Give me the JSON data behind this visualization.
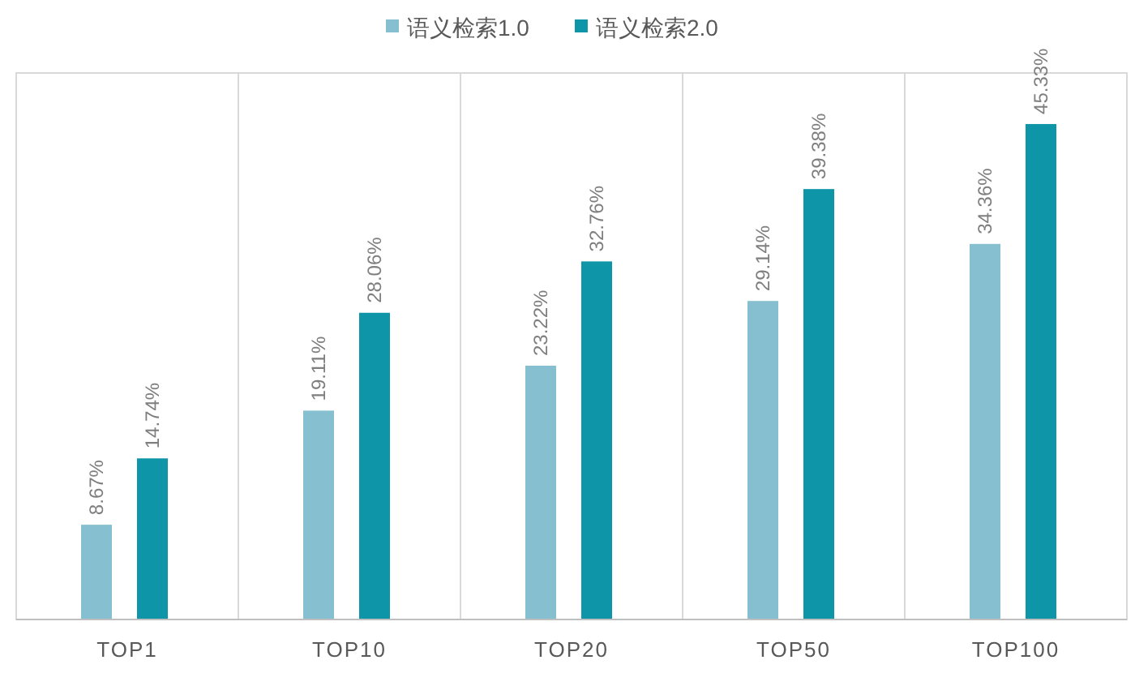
{
  "chart_data": {
    "type": "bar",
    "categories": [
      "TOP1",
      "TOP10",
      "TOP20",
      "TOP50",
      "TOP100"
    ],
    "series": [
      {
        "name": "语义检索1.0",
        "color": "#86bfcf",
        "values": [
          8.67,
          19.11,
          23.22,
          29.14,
          34.36
        ],
        "value_labels": [
          "8.67%",
          "19.11%",
          "23.22%",
          "29.14%",
          "34.36%"
        ]
      },
      {
        "name": "语义检索2.0",
        "color": "#0e96a8",
        "values": [
          14.74,
          28.06,
          32.76,
          39.38,
          45.33
        ],
        "value_labels": [
          "14.74%",
          "28.06%",
          "32.76%",
          "39.38%",
          "45.33%"
        ]
      }
    ],
    "ylim": [
      0,
      50
    ],
    "grid": "x",
    "legend": "top",
    "tick_labels": "x"
  }
}
